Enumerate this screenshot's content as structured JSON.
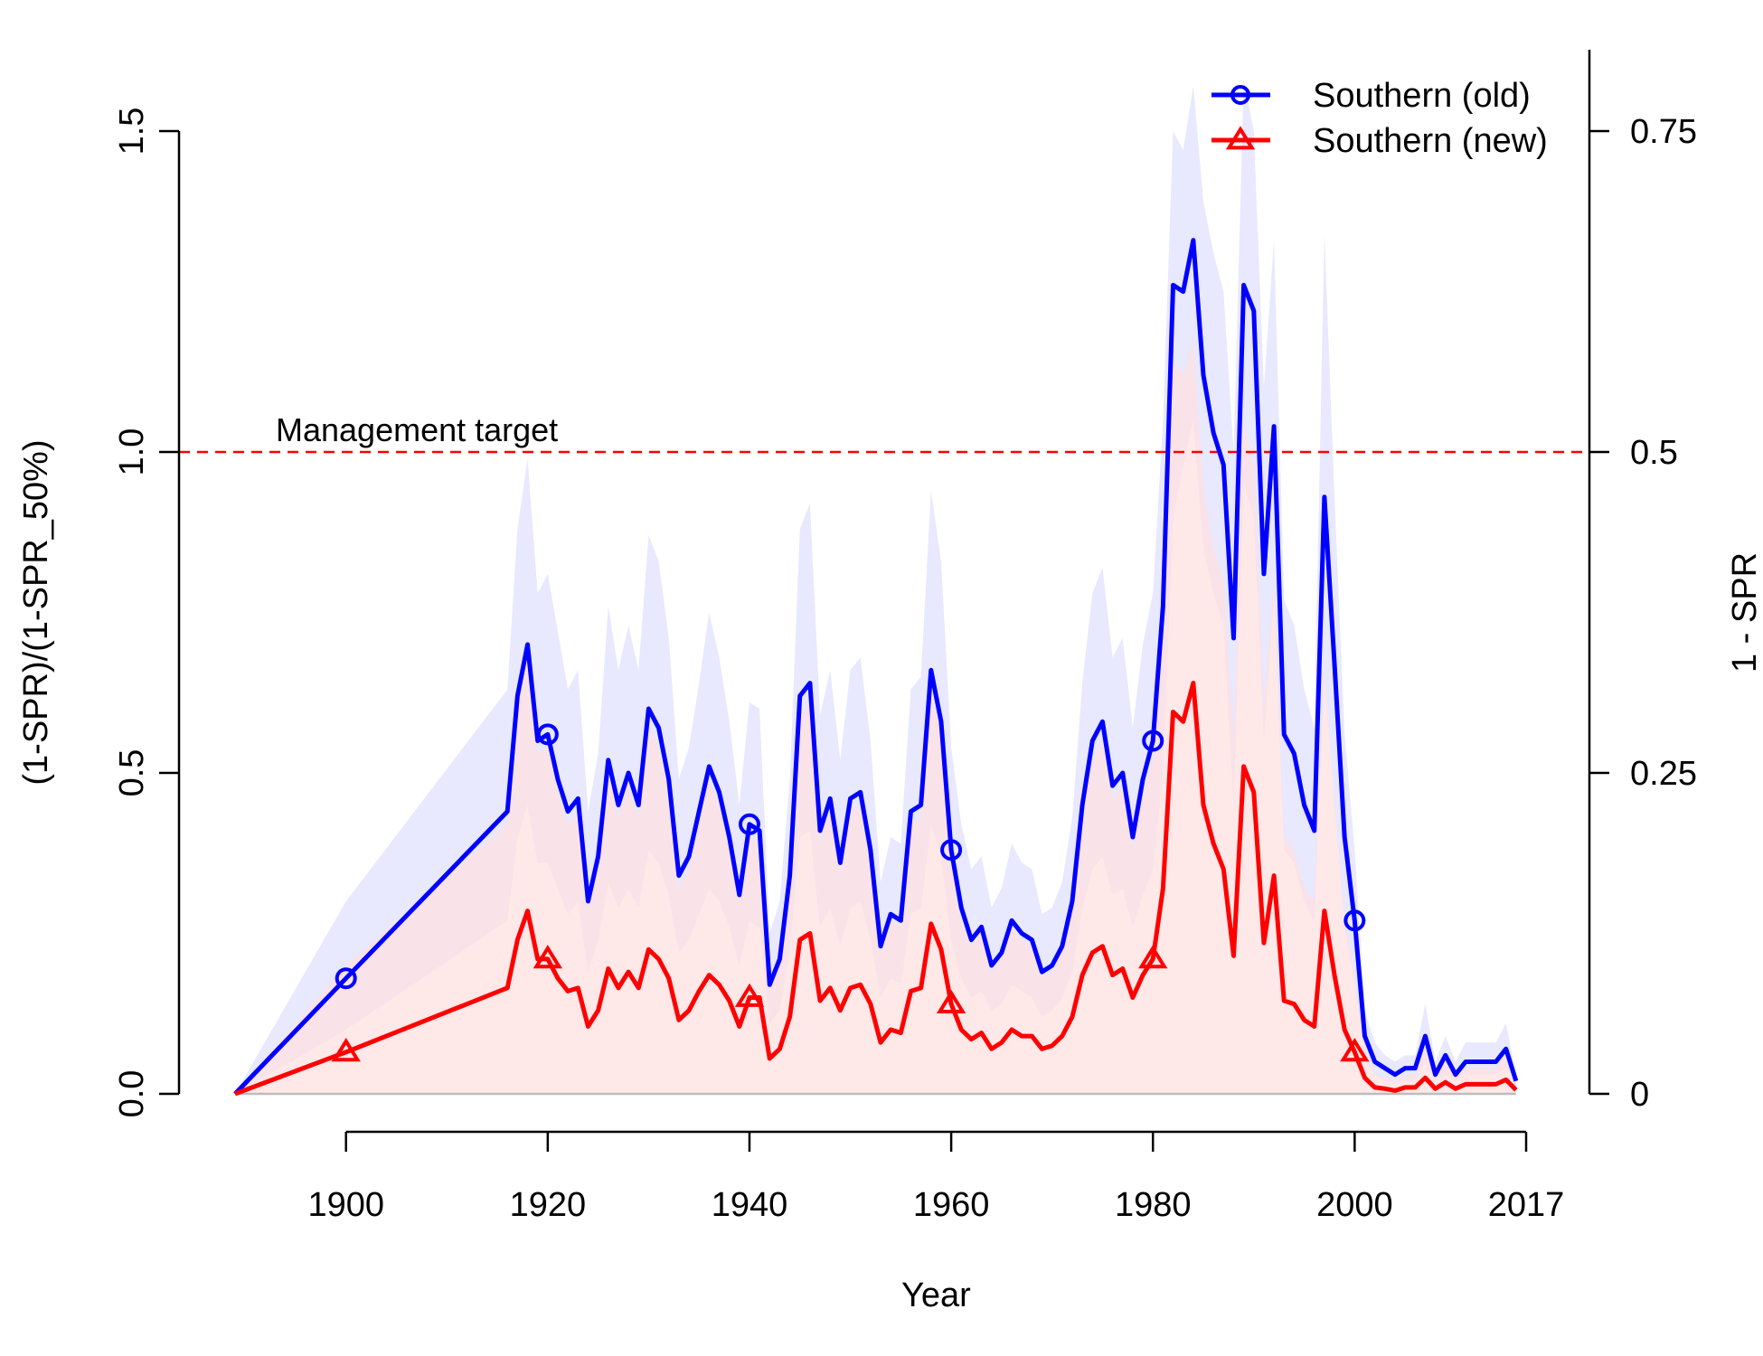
{
  "chart_data": {
    "type": "line",
    "xlabel": "Year",
    "ylabel": "(1-SPR)/(1-SPR_50%)",
    "ylabel_right": "1 - SPR",
    "xlim": [
      1889,
      2017
    ],
    "ylim": [
      0,
      1.6
    ],
    "x_ticks": [
      1900,
      1920,
      1940,
      1960,
      1980,
      2000,
      2017
    ],
    "y_ticks": [
      0.0,
      0.5,
      1.0,
      1.5
    ],
    "y_tick_labels": [
      "0.0",
      "0.5",
      "1.0",
      "1.5"
    ],
    "y_right_ticks": [
      0,
      0.25,
      0.5,
      0.75
    ],
    "y_right_tick_labels": [
      "0",
      "0.25",
      "0.5",
      "0.75"
    ],
    "reference_line": {
      "y": 1.0,
      "label": "Management target",
      "color": "#ff0000",
      "style": "dashed"
    },
    "legend": {
      "position": "top-right"
    },
    "grid": false,
    "series": [
      {
        "name": "Southern (old)",
        "color": "#0000ff",
        "band_color": "#e0e0ff",
        "marker": "circle",
        "marker_years": [
          1900,
          1920,
          1940,
          1960,
          1980,
          2000
        ],
        "x": [
          1889,
          1900,
          1916,
          1917,
          1918,
          1919,
          1920,
          1921,
          1922,
          1923,
          1924,
          1925,
          1926,
          1927,
          1928,
          1929,
          1930,
          1931,
          1932,
          1933,
          1934,
          1935,
          1936,
          1937,
          1938,
          1939,
          1940,
          1941,
          1942,
          1943,
          1944,
          1945,
          1946,
          1947,
          1948,
          1949,
          1950,
          1951,
          1952,
          1953,
          1954,
          1955,
          1956,
          1957,
          1958,
          1959,
          1960,
          1961,
          1962,
          1963,
          1964,
          1965,
          1966,
          1967,
          1968,
          1969,
          1970,
          1971,
          1972,
          1973,
          1974,
          1975,
          1976,
          1977,
          1978,
          1979,
          1980,
          1981,
          1982,
          1983,
          1984,
          1985,
          1986,
          1987,
          1988,
          1989,
          1990,
          1991,
          1992,
          1993,
          1994,
          1995,
          1996,
          1997,
          1998,
          1999,
          2000,
          2001,
          2002,
          2003,
          2004,
          2005,
          2006,
          2007,
          2008,
          2009,
          2010,
          2011,
          2012,
          2013,
          2014,
          2015,
          2016
        ],
        "y": [
          0,
          0.18,
          0.44,
          0.62,
          0.7,
          0.55,
          0.56,
          0.49,
          0.44,
          0.46,
          0.3,
          0.37,
          0.52,
          0.45,
          0.5,
          0.45,
          0.6,
          0.57,
          0.49,
          0.34,
          0.37,
          0.44,
          0.51,
          0.47,
          0.4,
          0.31,
          0.42,
          0.41,
          0.17,
          0.21,
          0.34,
          0.62,
          0.64,
          0.41,
          0.46,
          0.36,
          0.46,
          0.47,
          0.38,
          0.23,
          0.28,
          0.27,
          0.44,
          0.45,
          0.66,
          0.58,
          0.38,
          0.29,
          0.24,
          0.26,
          0.2,
          0.22,
          0.27,
          0.25,
          0.24,
          0.19,
          0.2,
          0.23,
          0.3,
          0.45,
          0.55,
          0.58,
          0.48,
          0.5,
          0.4,
          0.49,
          0.55,
          0.76,
          1.26,
          1.25,
          1.33,
          1.12,
          1.03,
          0.98,
          0.71,
          1.26,
          1.22,
          0.81,
          1.04,
          0.56,
          0.53,
          0.45,
          0.41,
          0.93,
          0.67,
          0.4,
          0.27,
          0.09,
          0.05,
          0.04,
          0.03,
          0.04,
          0.04,
          0.09,
          0.03,
          0.06,
          0.03,
          0.05,
          0.05,
          0.05,
          0.05,
          0.07,
          0.02
        ],
        "lower": [
          0,
          0.1,
          0.27,
          0.4,
          0.45,
          0.36,
          0.36,
          0.32,
          0.28,
          0.3,
          0.19,
          0.24,
          0.33,
          0.29,
          0.32,
          0.29,
          0.38,
          0.36,
          0.31,
          0.22,
          0.24,
          0.28,
          0.32,
          0.3,
          0.26,
          0.2,
          0.27,
          0.26,
          0.11,
          0.13,
          0.22,
          0.4,
          0.41,
          0.26,
          0.29,
          0.23,
          0.29,
          0.3,
          0.24,
          0.15,
          0.18,
          0.17,
          0.28,
          0.29,
          0.42,
          0.37,
          0.24,
          0.18,
          0.15,
          0.16,
          0.13,
          0.14,
          0.17,
          0.16,
          0.15,
          0.12,
          0.13,
          0.15,
          0.19,
          0.29,
          0.35,
          0.37,
          0.31,
          0.32,
          0.26,
          0.31,
          0.35,
          0.5,
          0.9,
          0.98,
          1.05,
          0.85,
          0.78,
          0.73,
          0.45,
          0.95,
          0.9,
          0.55,
          0.77,
          0.38,
          0.36,
          0.3,
          0.27,
          0.65,
          0.45,
          0.26,
          0.17,
          0.05,
          0.03,
          0.02,
          0.02,
          0.02,
          0.02,
          0.05,
          0.02,
          0.03,
          0.02,
          0.03,
          0.03,
          0.03,
          0.03,
          0.04,
          0.01
        ],
        "upper": [
          0,
          0.3,
          0.63,
          0.88,
          0.99,
          0.78,
          0.81,
          0.72,
          0.63,
          0.66,
          0.44,
          0.53,
          0.76,
          0.66,
          0.73,
          0.66,
          0.87,
          0.83,
          0.71,
          0.49,
          0.54,
          0.64,
          0.75,
          0.68,
          0.58,
          0.45,
          0.61,
          0.6,
          0.25,
          0.3,
          0.49,
          0.88,
          0.92,
          0.59,
          0.66,
          0.52,
          0.66,
          0.68,
          0.55,
          0.33,
          0.4,
          0.39,
          0.63,
          0.65,
          0.94,
          0.83,
          0.54,
          0.42,
          0.35,
          0.37,
          0.29,
          0.32,
          0.39,
          0.36,
          0.35,
          0.28,
          0.29,
          0.33,
          0.43,
          0.64,
          0.78,
          0.82,
          0.68,
          0.71,
          0.57,
          0.7,
          0.78,
          1.05,
          1.5,
          1.47,
          1.57,
          1.39,
          1.31,
          1.25,
          1.0,
          1.58,
          1.5,
          1.1,
          1.33,
          0.77,
          0.73,
          0.63,
          0.57,
          1.34,
          0.93,
          0.56,
          0.38,
          0.13,
          0.08,
          0.06,
          0.05,
          0.06,
          0.06,
          0.14,
          0.05,
          0.09,
          0.05,
          0.08,
          0.08,
          0.08,
          0.08,
          0.11,
          0.03
        ]
      },
      {
        "name": "Southern (new)",
        "color": "#ff0000",
        "band_color": "#ffe0e0",
        "marker": "triangle",
        "marker_years": [
          1900,
          1920,
          1940,
          1960,
          1980,
          2000
        ],
        "x": [
          1889,
          1900,
          1916,
          1917,
          1918,
          1919,
          1920,
          1921,
          1922,
          1923,
          1924,
          1925,
          1926,
          1927,
          1928,
          1929,
          1930,
          1931,
          1932,
          1933,
          1934,
          1935,
          1936,
          1937,
          1938,
          1939,
          1940,
          1941,
          1942,
          1943,
          1944,
          1945,
          1946,
          1947,
          1948,
          1949,
          1950,
          1951,
          1952,
          1953,
          1954,
          1955,
          1956,
          1957,
          1958,
          1959,
          1960,
          1961,
          1962,
          1963,
          1964,
          1965,
          1966,
          1967,
          1968,
          1969,
          1970,
          1971,
          1972,
          1973,
          1974,
          1975,
          1976,
          1977,
          1978,
          1979,
          1980,
          1981,
          1982,
          1983,
          1984,
          1985,
          1986,
          1987,
          1988,
          1989,
          1990,
          1991,
          1992,
          1993,
          1994,
          1995,
          1996,
          1997,
          1998,
          1999,
          2000,
          2001,
          2002,
          2003,
          2004,
          2005,
          2006,
          2007,
          2008,
          2009,
          2010,
          2011,
          2012,
          2013,
          2014,
          2015,
          2016
        ],
        "y": [
          0,
          0.065,
          0.165,
          0.24,
          0.285,
          0.21,
          0.21,
          0.18,
          0.16,
          0.165,
          0.105,
          0.13,
          0.195,
          0.165,
          0.19,
          0.165,
          0.225,
          0.21,
          0.18,
          0.115,
          0.13,
          0.16,
          0.185,
          0.17,
          0.145,
          0.105,
          0.15,
          0.15,
          0.055,
          0.07,
          0.12,
          0.24,
          0.25,
          0.145,
          0.165,
          0.13,
          0.165,
          0.17,
          0.14,
          0.08,
          0.1,
          0.095,
          0.16,
          0.165,
          0.265,
          0.225,
          0.14,
          0.1,
          0.085,
          0.095,
          0.07,
          0.08,
          0.1,
          0.09,
          0.09,
          0.07,
          0.075,
          0.09,
          0.12,
          0.185,
          0.22,
          0.23,
          0.185,
          0.195,
          0.15,
          0.185,
          0.21,
          0.32,
          0.595,
          0.58,
          0.64,
          0.45,
          0.39,
          0.35,
          0.215,
          0.51,
          0.47,
          0.235,
          0.34,
          0.145,
          0.14,
          0.115,
          0.105,
          0.285,
          0.185,
          0.1,
          0.065,
          0.025,
          0.01,
          0.008,
          0.005,
          0.01,
          0.01,
          0.025,
          0.008,
          0.018,
          0.008,
          0.015,
          0.015,
          0.015,
          0.015,
          0.022,
          0.006
        ],
        "lower": [
          0,
          0,
          0,
          0,
          0,
          0,
          0,
          0,
          0,
          0,
          0,
          0,
          0,
          0,
          0,
          0,
          0,
          0,
          0,
          0,
          0,
          0,
          0,
          0,
          0,
          0,
          0,
          0,
          0,
          0,
          0,
          0,
          0,
          0,
          0,
          0,
          0,
          0,
          0,
          0,
          0,
          0,
          0,
          0,
          0,
          0,
          0,
          0,
          0,
          0,
          0,
          0,
          0,
          0,
          0,
          0,
          0,
          0,
          0,
          0,
          0,
          0,
          0,
          0,
          0,
          0,
          0,
          0,
          0,
          0,
          0,
          0,
          0,
          0,
          0,
          0,
          0,
          0,
          0,
          0,
          0,
          0,
          0,
          0,
          0,
          0,
          0,
          0,
          0,
          0,
          0,
          0,
          0,
          0,
          0,
          0,
          0,
          0,
          0,
          0,
          0,
          0,
          0
        ],
        "upper": [
          0,
          0.2,
          0.42,
          0.6,
          0.69,
          0.53,
          0.54,
          0.47,
          0.42,
          0.44,
          0.29,
          0.35,
          0.5,
          0.43,
          0.48,
          0.43,
          0.57,
          0.54,
          0.47,
          0.32,
          0.35,
          0.42,
          0.49,
          0.45,
          0.38,
          0.29,
          0.4,
          0.39,
          0.16,
          0.2,
          0.32,
          0.59,
          0.61,
          0.39,
          0.44,
          0.34,
          0.44,
          0.45,
          0.36,
          0.22,
          0.27,
          0.26,
          0.42,
          0.43,
          0.63,
          0.55,
          0.36,
          0.27,
          0.23,
          0.25,
          0.19,
          0.21,
          0.26,
          0.24,
          0.23,
          0.18,
          0.19,
          0.22,
          0.29,
          0.43,
          0.52,
          0.55,
          0.46,
          0.48,
          0.38,
          0.47,
          0.52,
          0.75,
          1.14,
          1.12,
          1.17,
          0.95,
          0.85,
          0.8,
          0.55,
          1.05,
          0.98,
          0.6,
          0.8,
          0.4,
          0.38,
          0.32,
          0.3,
          0.66,
          0.45,
          0.27,
          0.18,
          0.07,
          0.03,
          0.025,
          0.02,
          0.03,
          0.03,
          0.07,
          0.025,
          0.05,
          0.025,
          0.04,
          0.04,
          0.04,
          0.04,
          0.06,
          0.02
        ]
      }
    ]
  }
}
